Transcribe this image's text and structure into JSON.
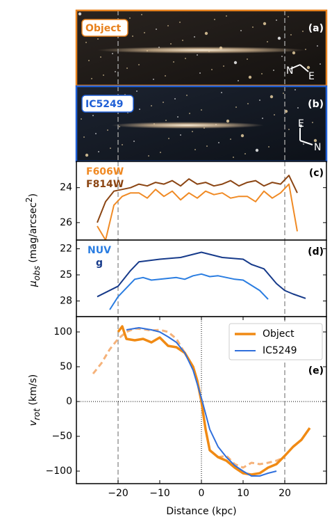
{
  "chart_data": [
    {
      "type": "image",
      "label": "Object",
      "panel": "(a)",
      "compass": [
        "N",
        "E"
      ],
      "color": "#e8821e",
      "xlim": [
        -30,
        30
      ],
      "vlines": [
        -20,
        20
      ]
    },
    {
      "type": "image",
      "label": "IC5249",
      "panel": "(b)",
      "compass": [
        "E",
        "N"
      ],
      "color": "#1f5fd6",
      "xlim": [
        -30,
        30
      ],
      "vlines": [
        -20,
        20
      ]
    },
    {
      "type": "line",
      "panel": "(c)",
      "xlim": [
        -30,
        30
      ],
      "ylim": [
        27,
        22.5
      ],
      "yticks": [
        24,
        26
      ],
      "vlines": [
        -20,
        20
      ],
      "ylabel": "μ",
      "ylabel_sub": "obs",
      "ylabel_unit": " (mag/arcsec",
      "ylabel_sup": "2",
      "ylabel_end": ")",
      "series": [
        {
          "name": "F606W",
          "color": "#f08a24",
          "x": [
            -25,
            -23,
            -21,
            -19,
            -17,
            -15,
            -13,
            -11,
            -9,
            -7,
            -5,
            -3,
            -1,
            1,
            3,
            5,
            7,
            9,
            11,
            13,
            15,
            17,
            19,
            21,
            23
          ],
          "values": [
            26.2,
            27.0,
            25.0,
            24.5,
            24.3,
            24.3,
            24.6,
            24.1,
            24.5,
            24.2,
            24.7,
            24.3,
            24.6,
            24.2,
            24.4,
            24.3,
            24.6,
            24.5,
            24.5,
            24.8,
            24.2,
            24.6,
            24.3,
            23.8,
            26.5
          ]
        },
        {
          "name": "F814W",
          "color": "#8b4513",
          "x": [
            -25,
            -23,
            -21,
            -19,
            -17,
            -15,
            -13,
            -11,
            -9,
            -7,
            -5,
            -3,
            -1,
            1,
            3,
            5,
            7,
            9,
            11,
            13,
            15,
            17,
            19,
            21,
            23
          ],
          "values": [
            26.0,
            24.8,
            24.2,
            24.1,
            24.0,
            23.8,
            23.9,
            23.7,
            23.8,
            23.6,
            23.9,
            23.5,
            23.8,
            23.7,
            23.9,
            23.8,
            23.6,
            23.9,
            23.7,
            23.6,
            23.9,
            23.7,
            23.8,
            23.3,
            24.3
          ]
        }
      ]
    },
    {
      "type": "line",
      "panel": "(d)",
      "xlim": [
        -30,
        30
      ],
      "ylim": [
        29.8,
        21
      ],
      "yticks": [
        22,
        25,
        28
      ],
      "vlines": [
        -20,
        20
      ],
      "series": [
        {
          "name": "NUV",
          "color": "#2a7de1",
          "x": [
            -22,
            -20,
            -18,
            -16,
            -14,
            -12,
            -10,
            -8,
            -6,
            -4,
            -2,
            0,
            2,
            4,
            6,
            8,
            10,
            12,
            14,
            16
          ],
          "values": [
            29.0,
            27.5,
            26.5,
            25.5,
            25.3,
            25.6,
            25.5,
            25.4,
            25.3,
            25.5,
            25.1,
            24.9,
            25.2,
            25.1,
            25.3,
            25.5,
            25.6,
            26.2,
            26.8,
            27.8
          ]
        },
        {
          "name": "g",
          "color": "#163a8a",
          "x": [
            -25,
            -20,
            -17,
            -15,
            -10,
            -5,
            0,
            5,
            10,
            12,
            15,
            18,
            20,
            22,
            25
          ],
          "values": [
            27.5,
            26.3,
            24.5,
            23.5,
            23.2,
            23.0,
            22.4,
            23.0,
            23.2,
            23.8,
            24.3,
            26.0,
            26.8,
            27.2,
            27.7
          ]
        }
      ]
    },
    {
      "type": "line",
      "panel": "(e)",
      "xlim": [
        -30,
        30
      ],
      "ylim": [
        -118,
        122
      ],
      "yticks": [
        100,
        50,
        0,
        {
          "value": -50,
          "label": "−50"
        },
        {
          "value": -100,
          "label": "−100"
        }
      ],
      "xticks": [
        {
          "value": -20,
          "label": "−20"
        },
        {
          "value": -10,
          "label": "−10"
        },
        0,
        10,
        20
      ],
      "xlabel": "Distance (kpc)",
      "ylabel": "v",
      "ylabel_sub": "rot",
      "ylabel_unit": " (km/s)",
      "vlines": [
        -20,
        20
      ],
      "dotted_vlines": [
        0
      ],
      "dotted_hlines": [
        0
      ],
      "legend": "upper right",
      "series": [
        {
          "color": "#f5b27a",
          "linestyle": "dashed",
          "x": [
            -26,
            -24,
            -22,
            -20,
            -18,
            -16,
            -14,
            -12,
            -10,
            -8,
            -6,
            -4
          ],
          "values": [
            40,
            55,
            75,
            90,
            100,
            105,
            104,
            102,
            103,
            100,
            90,
            70
          ]
        },
        {
          "color": "#f5b27a",
          "linestyle": "dashed",
          "x": [
            4,
            6,
            8,
            10,
            12,
            14,
            16,
            18,
            20
          ],
          "values": [
            -80,
            -78,
            -90,
            -95,
            -88,
            -90,
            -88,
            -85,
            -80
          ]
        },
        {
          "name": "Object",
          "color": "#f08a14",
          "width": 3.5,
          "x": [
            -20,
            -19,
            -18,
            -16,
            -14,
            -12,
            -10,
            -8,
            -6,
            -4,
            -2,
            -1,
            0,
            1,
            2,
            4,
            6,
            8,
            10,
            12,
            14,
            16,
            18,
            20,
            22,
            24,
            26
          ],
          "values": [
            100,
            108,
            90,
            88,
            90,
            85,
            92,
            80,
            78,
            70,
            50,
            30,
            0,
            -40,
            -70,
            -80,
            -85,
            -95,
            -103,
            -105,
            -103,
            -95,
            -90,
            -78,
            -65,
            -55,
            -38
          ]
        },
        {
          "name": "IC5249",
          "color": "#2f6fdc",
          "width": 2,
          "x": [
            -18,
            -15,
            -12,
            -10,
            -8,
            -6,
            -4,
            -2,
            0,
            2,
            4,
            6,
            8,
            10,
            12,
            14,
            16,
            18
          ],
          "values": [
            103,
            106,
            103,
            100,
            93,
            85,
            70,
            45,
            5,
            -40,
            -65,
            -80,
            -92,
            -100,
            -107,
            -107,
            -103,
            -100
          ]
        }
      ]
    }
  ]
}
